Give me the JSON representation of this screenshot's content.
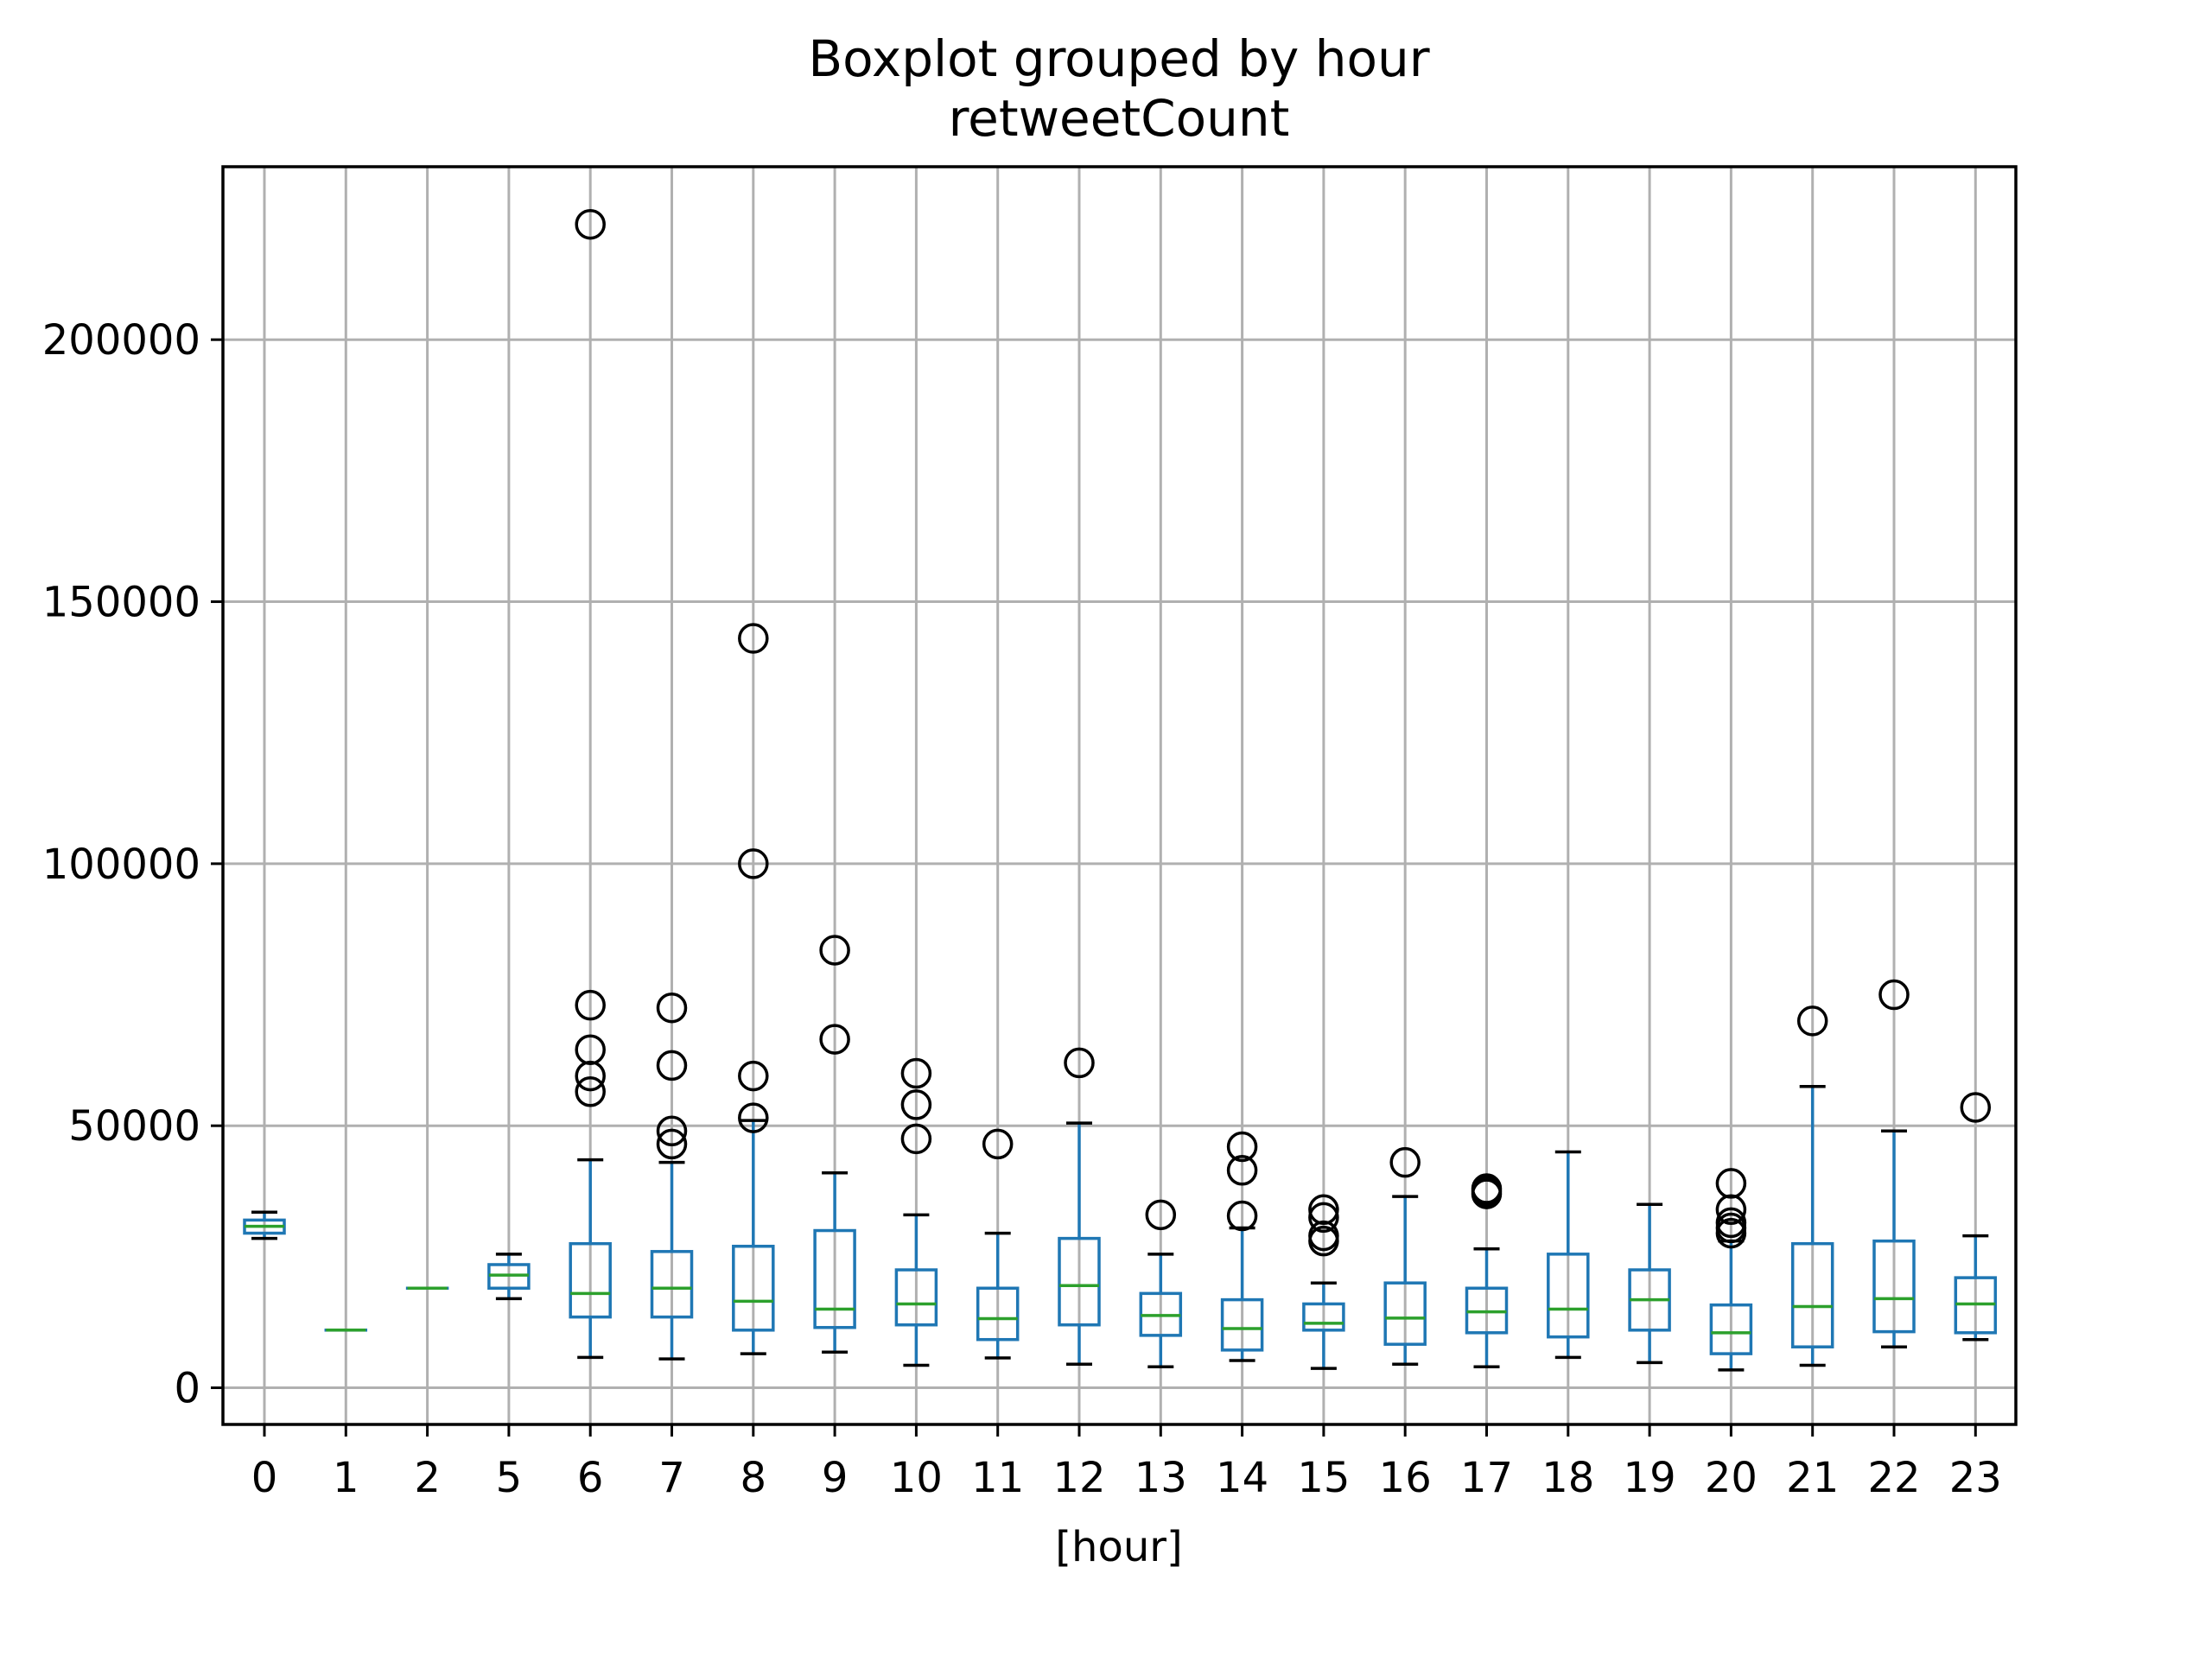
{
  "chart_data": {
    "type": "box",
    "title": "Boxplot grouped by hour",
    "subtitle": "retweetCount",
    "xlabel": "[hour]",
    "ylabel": "",
    "categories": [
      "0",
      "1",
      "2",
      "5",
      "6",
      "7",
      "8",
      "9",
      "10",
      "11",
      "12",
      "13",
      "14",
      "15",
      "16",
      "17",
      "18",
      "19",
      "20",
      "21",
      "22",
      "23"
    ],
    "ylim": [
      -7000,
      233000
    ],
    "yticks": [
      0,
      50000,
      100000,
      150000,
      200000
    ],
    "ytick_labels": [
      "0",
      "50000",
      "100000",
      "150000",
      "200000"
    ],
    "grid": true,
    "legend": "none",
    "colors": {
      "box": "#1f77b4",
      "median": "#2ca02c",
      "whisker_cap": "#000000",
      "outlier": "#000000",
      "grid": "#b0b0b0",
      "frame": "#000000"
    },
    "boxes": [
      {
        "label": "0",
        "whislo": 28500,
        "q1": 29500,
        "med": 30800,
        "q3": 32000,
        "whishi": 33500,
        "fliers": []
      },
      {
        "label": "1",
        "whislo": 11000,
        "q1": 11000,
        "med": 11000,
        "q3": 11000,
        "whishi": 11000,
        "fliers": []
      },
      {
        "label": "2",
        "whislo": 19000,
        "q1": 19000,
        "med": 19000,
        "q3": 19000,
        "whishi": 19000,
        "fliers": []
      },
      {
        "label": "5",
        "whislo": 17000,
        "q1": 19000,
        "med": 21500,
        "q3": 23500,
        "whishi": 25500,
        "fliers": []
      },
      {
        "label": "6",
        "whislo": 5800,
        "q1": 13500,
        "med": 18000,
        "q3": 27500,
        "whishi": 43500,
        "fliers": [
          56500,
          59500,
          64500,
          73000,
          222000
        ]
      },
      {
        "label": "7",
        "whislo": 5500,
        "q1": 13500,
        "med": 19000,
        "q3": 26000,
        "whishi": 43000,
        "fliers": [
          46500,
          49000,
          61500,
          72500
        ]
      },
      {
        "label": "8",
        "whislo": 6500,
        "q1": 11000,
        "med": 16500,
        "q3": 27000,
        "whishi": 51000,
        "fliers": [
          51500,
          59500,
          100000,
          143000
        ]
      },
      {
        "label": "9",
        "whislo": 6800,
        "q1": 11500,
        "med": 15000,
        "q3": 30000,
        "whishi": 41000,
        "fliers": [
          66500,
          83500
        ]
      },
      {
        "label": "10",
        "whislo": 4300,
        "q1": 12000,
        "med": 16000,
        "q3": 22500,
        "whishi": 33000,
        "fliers": [
          47500,
          54000,
          60000
        ]
      },
      {
        "label": "11",
        "whislo": 5700,
        "q1": 9200,
        "med": 13200,
        "q3": 19000,
        "whishi": 29500,
        "fliers": [
          46500
        ]
      },
      {
        "label": "12",
        "whislo": 4500,
        "q1": 12000,
        "med": 19500,
        "q3": 28500,
        "whishi": 50500,
        "fliers": [
          62000
        ]
      },
      {
        "label": "13",
        "whislo": 4000,
        "q1": 10000,
        "med": 13800,
        "q3": 18000,
        "whishi": 25500,
        "fliers": [
          33000
        ]
      },
      {
        "label": "14",
        "whislo": 5200,
        "q1": 7200,
        "med": 11300,
        "q3": 16800,
        "whishi": 30500,
        "fliers": [
          32800,
          41500,
          46000
        ]
      },
      {
        "label": "15",
        "whislo": 3700,
        "q1": 11000,
        "med": 12300,
        "q3": 16000,
        "whishi": 20000,
        "fliers": [
          28000,
          29000,
          32500,
          34000
        ]
      },
      {
        "label": "16",
        "whislo": 4500,
        "q1": 8300,
        "med": 13300,
        "q3": 20000,
        "whishi": 36500,
        "fliers": [
          43000
        ]
      },
      {
        "label": "17",
        "whislo": 4000,
        "q1": 10500,
        "med": 14500,
        "q3": 19000,
        "whishi": 26500,
        "fliers": [
          37000,
          37500,
          38000
        ]
      },
      {
        "label": "18",
        "whislo": 5800,
        "q1": 9700,
        "med": 15000,
        "q3": 25500,
        "whishi": 45000,
        "fliers": []
      },
      {
        "label": "19",
        "whislo": 4800,
        "q1": 11000,
        "med": 16800,
        "q3": 22500,
        "whishi": 35000,
        "fliers": []
      },
      {
        "label": "20",
        "whislo": 3400,
        "q1": 6500,
        "med": 10500,
        "q3": 15800,
        "whishi": 28000,
        "fliers": [
          29500,
          30500,
          31500,
          34000,
          39000
        ]
      },
      {
        "label": "21",
        "whislo": 4300,
        "q1": 7800,
        "med": 15500,
        "q3": 27500,
        "whishi": 57500,
        "fliers": [
          70000
        ]
      },
      {
        "label": "22",
        "whislo": 7800,
        "q1": 10700,
        "med": 17000,
        "q3": 28000,
        "whishi": 49000,
        "fliers": [
          75000
        ]
      },
      {
        "label": "23",
        "whislo": 9200,
        "q1": 10500,
        "med": 16000,
        "q3": 21000,
        "whishi": 29000,
        "fliers": [
          53500
        ]
      }
    ]
  }
}
